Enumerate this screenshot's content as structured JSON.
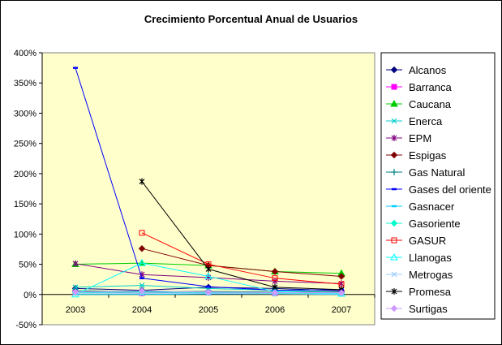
{
  "chart_data": {
    "type": "line",
    "title": "Crecimiento Porcentual Anual de Usuarios",
    "xlabel": "",
    "ylabel": "",
    "categories": [
      "2003",
      "2004",
      "2005",
      "2006",
      "2007"
    ],
    "y_ticks": [
      "-50%",
      "0%",
      "50%",
      "100%",
      "150%",
      "200%",
      "250%",
      "300%",
      "350%",
      "400%"
    ],
    "ylim": [
      -0.5,
      4.0
    ],
    "grid": false,
    "plot_background": "#ffffcc",
    "legend_position": "right",
    "series": [
      {
        "name": "Alcanos",
        "values": [
          0.1,
          0.07,
          0.12,
          0.1,
          0.06
        ],
        "color": "#000080",
        "marker": "diamond"
      },
      {
        "name": "Barranca",
        "values": [
          0.03,
          0.02,
          0.03,
          0.02,
          0.02
        ],
        "color": "#ff00ff",
        "marker": "square"
      },
      {
        "name": "Caucana",
        "values": [
          0.5,
          0.52,
          0.48,
          0.38,
          0.35
        ],
        "color": "#00cc00",
        "marker": "triangle"
      },
      {
        "name": "Enerca",
        "values": [
          0.12,
          0.15,
          0.1,
          0.07,
          0.04
        ],
        "color": "#00cccc",
        "marker": "x"
      },
      {
        "name": "EPM",
        "values": [
          0.51,
          0.33,
          0.28,
          0.22,
          0.18
        ],
        "color": "#800080",
        "marker": "star"
      },
      {
        "name": "Espigas",
        "values": [
          null,
          0.76,
          0.48,
          0.38,
          0.3
        ],
        "color": "#800000",
        "marker": "diamond"
      },
      {
        "name": "Gas Natural",
        "values": [
          0.06,
          0.05,
          0.05,
          0.04,
          0.04
        ],
        "color": "#008080",
        "marker": "plus"
      },
      {
        "name": "Gases del oriente",
        "values": [
          3.75,
          0.27,
          0.13,
          0.07,
          0.08
        ],
        "color": "#0000ff",
        "marker": "dash"
      },
      {
        "name": "Gasnacer",
        "values": [
          0.0,
          0.0,
          0.01,
          0.01,
          0.0
        ],
        "color": "#00ccff",
        "marker": "dash"
      },
      {
        "name": "Gasoriente",
        "values": [
          0.03,
          0.04,
          0.03,
          0.02,
          0.02
        ],
        "color": "#00ffcc",
        "marker": "diamond"
      },
      {
        "name": "GASUR",
        "values": [
          null,
          1.02,
          0.5,
          0.27,
          0.17
        ],
        "color": "#ff0000",
        "marker": "open-square"
      },
      {
        "name": "Llanogas",
        "values": [
          0.0,
          0.52,
          0.3,
          0.05,
          0.01
        ],
        "color": "#00ffff",
        "marker": "open-triangle"
      },
      {
        "name": "Metrogas",
        "values": [
          0.02,
          0.02,
          0.02,
          0.01,
          0.01
        ],
        "color": "#99ccff",
        "marker": "x"
      },
      {
        "name": "Promesa",
        "values": [
          null,
          1.87,
          0.42,
          0.12,
          0.08
        ],
        "color": "#000000",
        "marker": "star"
      },
      {
        "name": "Surtigas",
        "values": [
          0.04,
          0.06,
          0.04,
          0.03,
          0.03
        ],
        "color": "#cc99ff",
        "marker": "diamond"
      }
    ]
  }
}
